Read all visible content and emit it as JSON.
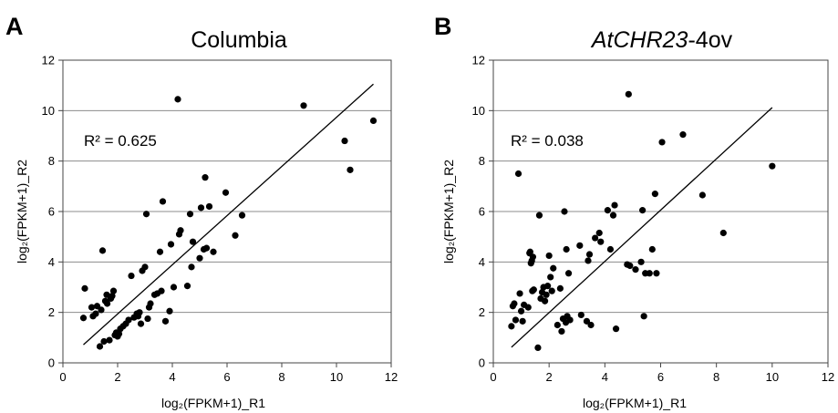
{
  "chart_data": [
    {
      "type": "scatter",
      "panel": "A",
      "title": "Columbia",
      "title_italic": "",
      "title_suffix": "",
      "xlabel": "log₂(FPKM+1)_R1",
      "ylabel": "log₂(FPKM+1)_R2",
      "xlim": [
        0,
        12
      ],
      "ylim": [
        0,
        12
      ],
      "xticks": [
        0,
        2,
        4,
        6,
        8,
        10,
        12
      ],
      "yticks": [
        0,
        2,
        4,
        6,
        8,
        10,
        12
      ],
      "grid": "horizontal",
      "annotation": "R² = 0.625",
      "trendline": {
        "x": [
          0.75,
          11.35
        ],
        "y": [
          0.72,
          11.05
        ]
      },
      "points": [
        [
          0.75,
          1.78
        ],
        [
          0.8,
          2.95
        ],
        [
          1.05,
          2.2
        ],
        [
          1.1,
          1.85
        ],
        [
          1.2,
          1.95
        ],
        [
          1.25,
          2.25
        ],
        [
          1.35,
          0.65
        ],
        [
          1.4,
          2.1
        ],
        [
          1.45,
          4.45
        ],
        [
          1.5,
          0.85
        ],
        [
          1.55,
          2.45
        ],
        [
          1.6,
          2.7
        ],
        [
          1.62,
          2.35
        ],
        [
          1.7,
          0.9
        ],
        [
          1.75,
          2.55
        ],
        [
          1.8,
          2.65
        ],
        [
          1.85,
          2.85
        ],
        [
          1.9,
          1.1
        ],
        [
          1.95,
          1.2
        ],
        [
          2.0,
          1.05
        ],
        [
          2.05,
          1.15
        ],
        [
          2.1,
          1.35
        ],
        [
          2.2,
          1.45
        ],
        [
          2.3,
          1.55
        ],
        [
          2.4,
          1.7
        ],
        [
          2.5,
          3.45
        ],
        [
          2.6,
          1.8
        ],
        [
          2.7,
          1.95
        ],
        [
          2.75,
          1.85
        ],
        [
          2.8,
          2.0
        ],
        [
          2.85,
          1.55
        ],
        [
          2.9,
          3.65
        ],
        [
          3.0,
          3.8
        ],
        [
          3.05,
          5.9
        ],
        [
          3.1,
          1.75
        ],
        [
          3.15,
          2.2
        ],
        [
          3.2,
          2.35
        ],
        [
          3.35,
          2.7
        ],
        [
          3.45,
          2.75
        ],
        [
          3.55,
          4.4
        ],
        [
          3.6,
          2.85
        ],
        [
          3.65,
          6.4
        ],
        [
          3.75,
          1.65
        ],
        [
          3.9,
          2.05
        ],
        [
          3.95,
          4.7
        ],
        [
          4.05,
          3.0
        ],
        [
          4.2,
          10.45
        ],
        [
          4.25,
          5.1
        ],
        [
          4.3,
          5.25
        ],
        [
          4.55,
          3.05
        ],
        [
          4.65,
          5.9
        ],
        [
          4.7,
          3.8
        ],
        [
          4.75,
          4.8
        ],
        [
          5.0,
          4.15
        ],
        [
          5.05,
          6.15
        ],
        [
          5.15,
          4.5
        ],
        [
          5.2,
          7.35
        ],
        [
          5.25,
          4.55
        ],
        [
          5.35,
          6.2
        ],
        [
          5.5,
          4.4
        ],
        [
          5.95,
          6.75
        ],
        [
          6.3,
          5.05
        ],
        [
          6.55,
          5.85
        ],
        [
          8.8,
          10.2
        ],
        [
          10.3,
          8.8
        ],
        [
          10.5,
          7.65
        ],
        [
          11.35,
          9.6
        ]
      ]
    },
    {
      "type": "scatter",
      "panel": "B",
      "title": "",
      "title_italic": "AtCHR23",
      "title_suffix": "-4ov",
      "xlabel": "log₂(FPKM+1)_R1",
      "ylabel": "log₂(FPKM+1)_R2",
      "xlim": [
        0,
        12
      ],
      "ylim": [
        0,
        12
      ],
      "xticks": [
        0,
        2,
        4,
        6,
        8,
        10,
        12
      ],
      "yticks": [
        0,
        2,
        4,
        6,
        8,
        10,
        12
      ],
      "grid": "horizontal",
      "annotation": "R² = 0.038",
      "trendline": {
        "x": [
          0.65,
          10.0
        ],
        "y": [
          0.62,
          10.12
        ]
      },
      "points": [
        [
          0.65,
          1.45
        ],
        [
          0.7,
          2.25
        ],
        [
          0.75,
          2.35
        ],
        [
          0.8,
          1.7
        ],
        [
          0.9,
          7.5
        ],
        [
          0.95,
          2.75
        ],
        [
          1.0,
          2.05
        ],
        [
          1.05,
          1.65
        ],
        [
          1.1,
          2.3
        ],
        [
          1.25,
          2.2
        ],
        [
          1.3,
          4.35
        ],
        [
          1.32,
          4.4
        ],
        [
          1.35,
          3.95
        ],
        [
          1.38,
          4.05
        ],
        [
          1.4,
          2.85
        ],
        [
          1.42,
          4.2
        ],
        [
          1.45,
          2.9
        ],
        [
          1.6,
          0.6
        ],
        [
          1.65,
          5.85
        ],
        [
          1.7,
          2.55
        ],
        [
          1.75,
          2.8
        ],
        [
          1.8,
          3.0
        ],
        [
          1.85,
          2.45
        ],
        [
          1.9,
          2.7
        ],
        [
          1.95,
          3.05
        ],
        [
          2.0,
          4.25
        ],
        [
          2.05,
          3.4
        ],
        [
          2.1,
          2.85
        ],
        [
          2.15,
          3.75
        ],
        [
          2.3,
          1.5
        ],
        [
          2.4,
          2.95
        ],
        [
          2.45,
          1.25
        ],
        [
          2.5,
          1.75
        ],
        [
          2.55,
          6.0
        ],
        [
          2.6,
          1.6
        ],
        [
          2.62,
          4.5
        ],
        [
          2.65,
          1.85
        ],
        [
          2.7,
          3.55
        ],
        [
          2.75,
          1.7
        ],
        [
          3.1,
          4.65
        ],
        [
          3.15,
          1.9
        ],
        [
          3.35,
          1.65
        ],
        [
          3.4,
          4.05
        ],
        [
          3.45,
          4.3
        ],
        [
          3.5,
          1.5
        ],
        [
          3.65,
          4.95
        ],
        [
          3.8,
          5.15
        ],
        [
          3.85,
          4.8
        ],
        [
          4.1,
          6.05
        ],
        [
          4.2,
          4.5
        ],
        [
          4.3,
          5.85
        ],
        [
          4.35,
          6.25
        ],
        [
          4.4,
          1.35
        ],
        [
          4.8,
          3.9
        ],
        [
          4.85,
          10.65
        ],
        [
          4.9,
          3.85
        ],
        [
          5.1,
          3.7
        ],
        [
          5.3,
          4.0
        ],
        [
          5.35,
          6.05
        ],
        [
          5.4,
          1.85
        ],
        [
          5.45,
          3.55
        ],
        [
          5.6,
          3.55
        ],
        [
          5.7,
          4.5
        ],
        [
          5.8,
          6.7
        ],
        [
          5.85,
          3.55
        ],
        [
          6.05,
          8.75
        ],
        [
          6.8,
          9.05
        ],
        [
          7.5,
          6.65
        ],
        [
          8.25,
          5.15
        ],
        [
          10.0,
          7.8
        ]
      ]
    }
  ]
}
